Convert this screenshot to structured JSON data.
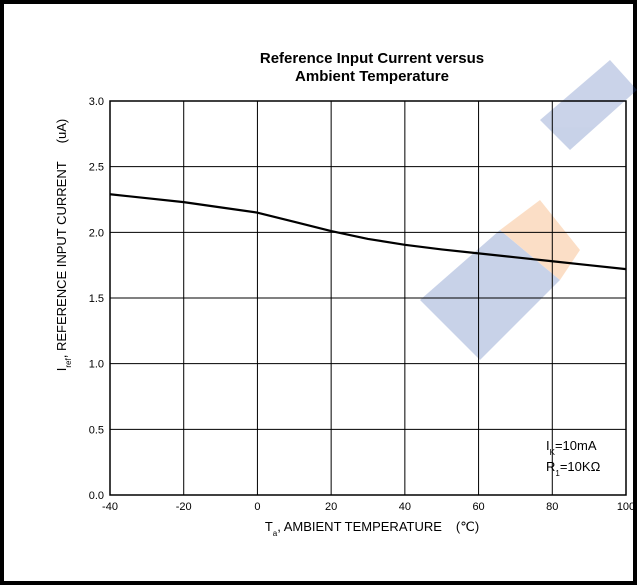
{
  "chart_data": {
    "type": "line",
    "title": [
      "Reference Input Current versus",
      "Ambient Temperature"
    ],
    "x_label": [
      "T",
      "a",
      ", AMBIENT TEMPERATURE",
      "(℃)"
    ],
    "y_label": [
      "I",
      "ref",
      ", REFERENCE INPUT CURRENT",
      "(uA)"
    ],
    "annotations": [
      [
        "I",
        "K",
        "=10mA"
      ],
      [
        "R",
        "1",
        "=10KΩ"
      ]
    ],
    "x": [
      -40,
      -30,
      -20,
      -10,
      0,
      10,
      20,
      30,
      40,
      50,
      60,
      70,
      80,
      90,
      100
    ],
    "series": [
      {
        "color": "#000000",
        "values": [
          2.29,
          2.26,
          2.23,
          2.19,
          2.15,
          2.08,
          2.01,
          1.95,
          1.905,
          1.87,
          1.84,
          1.81,
          1.78,
          1.75,
          1.72
        ]
      }
    ],
    "xlim": [
      -40,
      100
    ],
    "xticks": [
      -40,
      -20,
      0,
      20,
      40,
      60,
      80,
      100
    ],
    "ylim": [
      0,
      3
    ],
    "yticks": [
      {
        "value": 0,
        "label": "0.0"
      },
      0.5,
      {
        "value": 1,
        "label": "1.0"
      },
      1.5,
      {
        "value": 2,
        "label": "2.0"
      },
      2.5,
      {
        "value": 3,
        "label": "3.0"
      }
    ],
    "grid": true
  }
}
